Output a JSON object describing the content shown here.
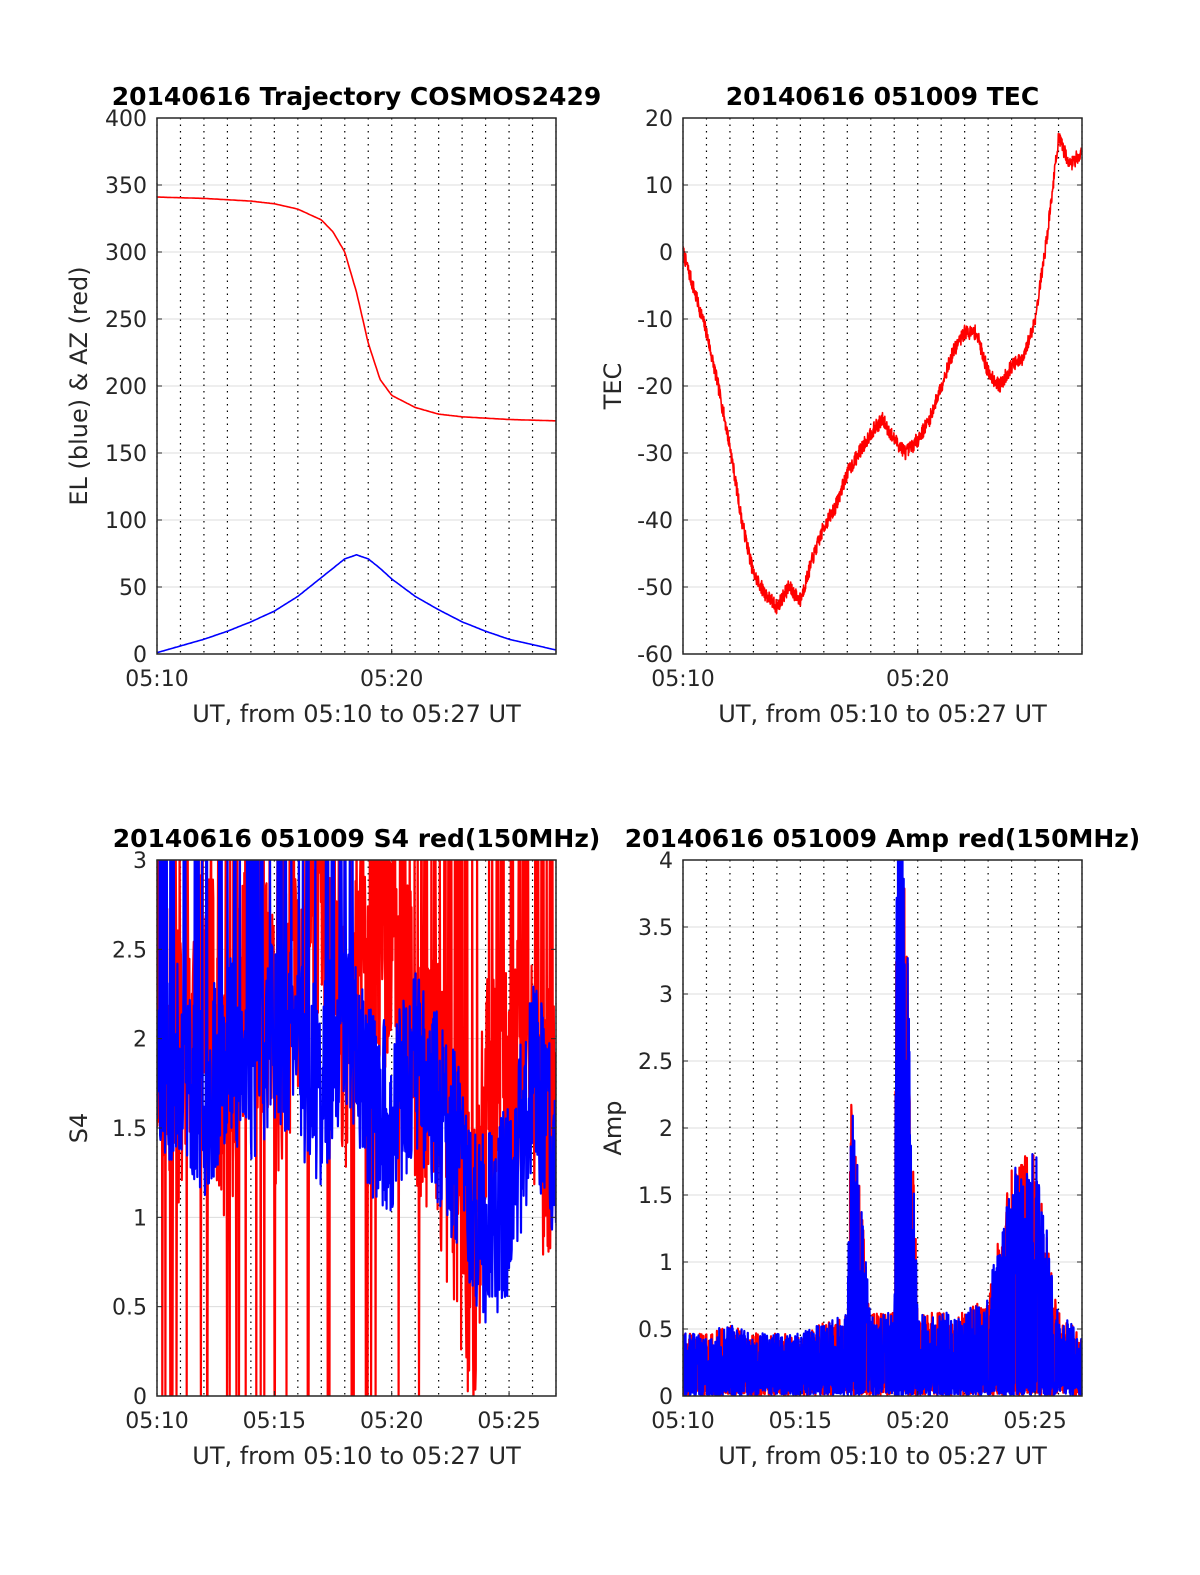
{
  "chart_data": [
    {
      "type": "line",
      "title": "20140616 Trajectory COSMOS2429",
      "xlabel": "UT, from 05:10 to 05:27 UT",
      "ylabel": "EL (blue) & AZ (red)",
      "xlim": [
        "05:10",
        "05:27"
      ],
      "ylim": [
        0,
        400
      ],
      "xticks": [
        "05:10",
        "05:20"
      ],
      "yticks": [
        "0",
        "50",
        "100",
        "150",
        "200",
        "250",
        "300",
        "350",
        "400"
      ],
      "grid": true,
      "series": [
        {
          "color": "#ff0000",
          "x": [
            "05:10",
            "05:12",
            "05:14",
            "05:15",
            "05:16",
            "05:17",
            "05:17:30",
            "05:18",
            "05:18:30",
            "05:19",
            "05:19:30",
            "05:20",
            "05:21",
            "05:22",
            "05:23",
            "05:25",
            "05:27"
          ],
          "values": [
            341,
            340,
            338,
            336,
            332,
            324,
            315,
            300,
            270,
            232,
            205,
            193,
            184,
            179,
            177,
            175,
            174
          ]
        },
        {
          "color": "#0000ff",
          "x": [
            "05:10",
            "05:11",
            "05:12",
            "05:13",
            "05:14",
            "05:15",
            "05:16",
            "05:17",
            "05:18",
            "05:18:30",
            "05:19",
            "05:19:30",
            "05:20",
            "05:21",
            "05:22",
            "05:23",
            "05:24",
            "05:25",
            "05:26",
            "05:27"
          ],
          "values": [
            1,
            6,
            11,
            17,
            24,
            32,
            43,
            57,
            71,
            74,
            71,
            64,
            56,
            43,
            33,
            24,
            17,
            11,
            7,
            3
          ]
        }
      ]
    },
    {
      "type": "line",
      "title": "20140616 051009 TEC",
      "xlabel": "UT, from 05:10 to 05:27 UT",
      "ylabel": "TEC",
      "xlim": [
        "05:10",
        "05:27"
      ],
      "ylim": [
        -60,
        20
      ],
      "xticks": [
        "05:10",
        "05:20"
      ],
      "yticks": [
        "-60",
        "-50",
        "-40",
        "-30",
        "-20",
        "-10",
        "0",
        "10",
        "20"
      ],
      "grid": true,
      "series": [
        {
          "color": "#ff0000",
          "x": [
            "05:10",
            "05:10:30",
            "05:11",
            "05:11:30",
            "05:12",
            "05:12:30",
            "05:13",
            "05:13:30",
            "05:14",
            "05:14:30",
            "05:15",
            "05:15:30",
            "05:16",
            "05:16:30",
            "05:17",
            "05:17:30",
            "05:18",
            "05:18:30",
            "05:19",
            "05:19:30",
            "05:20",
            "05:20:30",
            "05:21",
            "05:21:30",
            "05:22",
            "05:22:30",
            "05:23",
            "05:23:30",
            "05:24",
            "05:24:30",
            "05:25",
            "05:25:30",
            "05:26",
            "05:26:30",
            "05:27"
          ],
          "values": [
            0,
            -6,
            -12,
            -20,
            -29,
            -40,
            -48,
            -51,
            -53,
            -50,
            -52,
            -46,
            -41,
            -38,
            -33,
            -30,
            -27,
            -25,
            -28,
            -30,
            -28,
            -25,
            -20,
            -15,
            -12,
            -12,
            -18,
            -20,
            -17,
            -16,
            -10,
            2,
            17,
            13,
            15
          ]
        }
      ]
    },
    {
      "type": "line",
      "title": "20140616 051009 S4 red(150MHz)",
      "xlabel": "UT, from 05:10 to 05:27 UT",
      "ylabel": "S4",
      "xlim": [
        "05:10",
        "05:27"
      ],
      "ylim": [
        0,
        3
      ],
      "xticks": [
        "05:10",
        "05:15",
        "05:20",
        "05:25"
      ],
      "yticks": [
        "0",
        "0.5",
        "1",
        "1.5",
        "2",
        "2.5",
        "3"
      ],
      "grid": true,
      "series": [
        {
          "color": "#ff0000",
          "x": [
            "05:10",
            "05:11",
            "05:12",
            "05:13",
            "05:14",
            "05:15",
            "05:16",
            "05:17",
            "05:18",
            "05:19",
            "05:20",
            "05:21",
            "05:22",
            "05:23",
            "05:23:30",
            "05:24",
            "05:25",
            "05:26",
            "05:27"
          ],
          "values": [
            2.2,
            1.8,
            2.4,
            1.6,
            2.6,
            1.9,
            2.2,
            2.5,
            2.0,
            2.4,
            2.7,
            1.9,
            1.7,
            0.9,
            0.7,
            1.7,
            1.9,
            1.6,
            1.5
          ]
        },
        {
          "color": "#0000ff",
          "x": [
            "05:10",
            "05:11",
            "05:12",
            "05:13",
            "05:14",
            "05:15",
            "05:16",
            "05:17",
            "05:18",
            "05:19",
            "05:20",
            "05:21",
            "05:22",
            "05:23",
            "05:24",
            "05:25",
            "05:26",
            "05:27"
          ],
          "values": [
            1.7,
            1.9,
            1.6,
            2.0,
            1.8,
            2.1,
            1.9,
            1.7,
            2.2,
            1.7,
            1.5,
            1.9,
            1.6,
            1.3,
            0.9,
            1.1,
            1.8,
            1.4
          ]
        }
      ]
    },
    {
      "type": "line",
      "title": "20140616 051009 Amp red(150MHz)",
      "xlabel": "UT, from 05:10 to 05:27 UT",
      "ylabel": "Amp",
      "xlim": [
        "05:10",
        "05:27"
      ],
      "ylim": [
        0,
        4
      ],
      "xticks": [
        "05:10",
        "05:15",
        "05:20",
        "05:25"
      ],
      "yticks": [
        "0",
        "0.5",
        "1",
        "1.5",
        "2",
        "2.5",
        "3",
        "3.5",
        "4"
      ],
      "grid": true,
      "series": [
        {
          "color": "#ff0000",
          "x": [
            "05:10",
            "05:11",
            "05:12",
            "05:13",
            "05:14",
            "05:15",
            "05:16",
            "05:17",
            "05:17:10",
            "05:18",
            "05:19",
            "05:19:10",
            "05:20",
            "05:21",
            "05:22",
            "05:23",
            "05:24",
            "05:25",
            "05:26",
            "05:27"
          ],
          "values": [
            0.3,
            0.3,
            0.35,
            0.3,
            0.3,
            0.3,
            0.35,
            0.4,
            1.45,
            0.4,
            0.4,
            3.8,
            0.4,
            0.4,
            0.4,
            0.5,
            1.1,
            1.2,
            0.4,
            0.3
          ]
        },
        {
          "color": "#0000ff",
          "x": [
            "05:10",
            "05:11",
            "05:12",
            "05:13",
            "05:14",
            "05:15",
            "05:16",
            "05:17",
            "05:17:10",
            "05:18",
            "05:19",
            "05:19:10",
            "05:20",
            "05:21",
            "05:22",
            "05:23",
            "05:24",
            "05:25",
            "05:26",
            "05:27"
          ],
          "values": [
            0.3,
            0.3,
            0.35,
            0.3,
            0.3,
            0.3,
            0.35,
            0.4,
            1.43,
            0.4,
            0.4,
            3.8,
            0.4,
            0.4,
            0.4,
            0.5,
            1.1,
            1.2,
            0.4,
            0.3
          ]
        }
      ]
    }
  ]
}
